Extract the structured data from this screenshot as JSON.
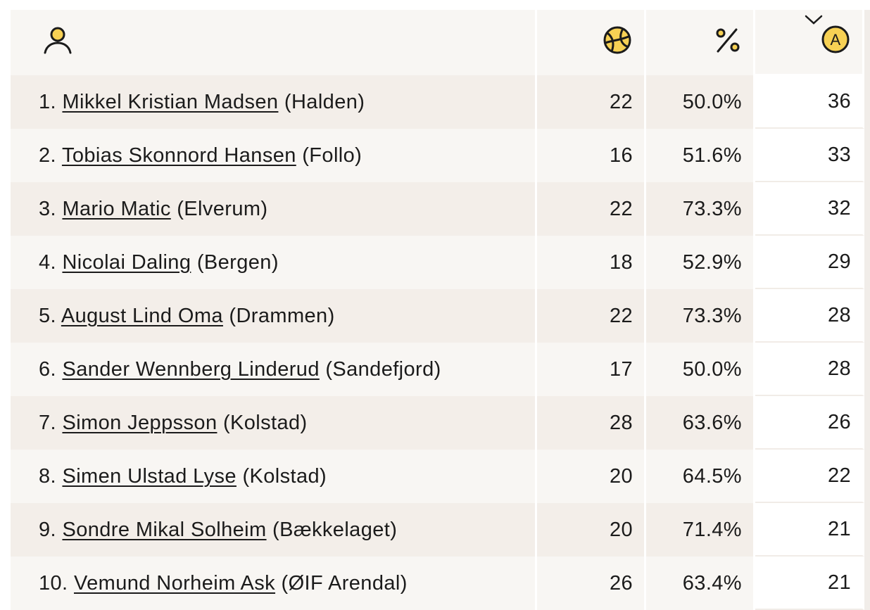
{
  "table": {
    "headers": {
      "player_icon": "user-icon",
      "goals_icon": "handball-icon",
      "percent_icon": "percent-icon",
      "assists_icon": "assist-icon",
      "assists_letter": "A",
      "sort_icon": "chevron-down-icon",
      "sorted_column": "assists"
    },
    "accent_color": "#f7d154",
    "rows": [
      {
        "rank": "1.",
        "name": "Mikkel Kristian Madsen",
        "team": "(Halden)",
        "goals": "22",
        "pct": "50.0%",
        "assists": "36"
      },
      {
        "rank": "2.",
        "name": "Tobias Skonnord Hansen",
        "team": "(Follo)",
        "goals": "16",
        "pct": "51.6%",
        "assists": "33"
      },
      {
        "rank": "3.",
        "name": "Mario Matic",
        "team": "(Elverum)",
        "goals": "22",
        "pct": "73.3%",
        "assists": "32"
      },
      {
        "rank": "4.",
        "name": "Nicolai Daling",
        "team": "(Bergen)",
        "goals": "18",
        "pct": "52.9%",
        "assists": "29"
      },
      {
        "rank": "5.",
        "name": "August Lind Oma",
        "team": "(Drammen)",
        "goals": "22",
        "pct": "73.3%",
        "assists": "28"
      },
      {
        "rank": "6.",
        "name": "Sander Wennberg Linderud",
        "team": "(Sandefjord)",
        "goals": "17",
        "pct": "50.0%",
        "assists": "28"
      },
      {
        "rank": "7.",
        "name": "Simon Jeppsson",
        "team": "(Kolstad)",
        "goals": "28",
        "pct": "63.6%",
        "assists": "26"
      },
      {
        "rank": "8.",
        "name": "Simen Ulstad Lyse",
        "team": "(Kolstad)",
        "goals": "20",
        "pct": "64.5%",
        "assists": "22"
      },
      {
        "rank": "9.",
        "name": "Sondre Mikal Solheim",
        "team": "(Bækkelaget)",
        "goals": "20",
        "pct": "71.4%",
        "assists": "21"
      },
      {
        "rank": "10.",
        "name": "Vemund Norheim Ask",
        "team": "(ØIF Arendal)",
        "goals": "26",
        "pct": "63.4%",
        "assists": "21"
      }
    ]
  }
}
